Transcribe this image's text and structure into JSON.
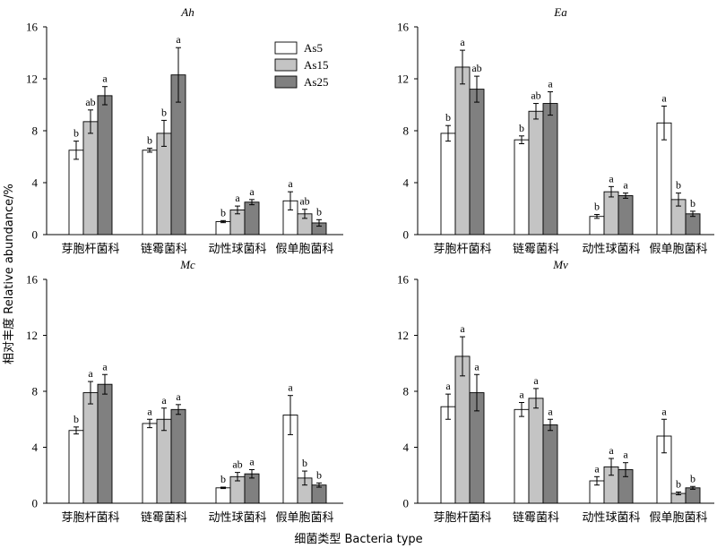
{
  "chart_data": {
    "type": "bar",
    "xlabel": "细菌类型 Bacteria type",
    "ylabel": "相对丰度 Relative abundance/%",
    "legend": {
      "placement": "top-right of first panel",
      "entries": [
        {
          "name": "As5",
          "color": "#ffffff"
        },
        {
          "name": "As15",
          "color": "#c4c4c4"
        },
        {
          "name": "As25",
          "color": "#808080"
        }
      ]
    },
    "series_names": [
      "As5",
      "As15",
      "As25"
    ],
    "series_colors": [
      "#ffffff",
      "#c4c4c4",
      "#808080"
    ],
    "categories": [
      "芽胞杆菌科",
      "链霉菌科",
      "动性球菌科",
      "假单胞菌科"
    ],
    "ylim": [
      0,
      16
    ],
    "yticks": [
      0,
      4,
      8,
      12,
      16
    ],
    "yticks_bottom": [
      0,
      4,
      8,
      12,
      16
    ],
    "panels": [
      {
        "title": "Ah",
        "values": [
          [
            6.5,
            8.7,
            10.7
          ],
          [
            6.5,
            7.8,
            12.3
          ],
          [
            1.0,
            1.9,
            2.5
          ],
          [
            2.6,
            1.6,
            0.9
          ]
        ],
        "errors": [
          [
            0.7,
            0.9,
            0.7
          ],
          [
            0.15,
            1.0,
            2.1
          ],
          [
            0.08,
            0.3,
            0.2
          ],
          [
            0.7,
            0.35,
            0.25
          ]
        ],
        "letters": [
          [
            "b",
            "ab",
            "a"
          ],
          [
            "b",
            "b",
            "a"
          ],
          [
            "b",
            "a",
            "a"
          ],
          [
            "a",
            "ab",
            "b"
          ]
        ]
      },
      {
        "title": "Ea",
        "values": [
          [
            7.8,
            12.9,
            11.2
          ],
          [
            7.3,
            9.5,
            10.1
          ],
          [
            1.4,
            3.3,
            3.0
          ],
          [
            8.6,
            2.7,
            1.6
          ]
        ],
        "errors": [
          [
            0.6,
            1.3,
            1.0
          ],
          [
            0.3,
            0.6,
            0.9
          ],
          [
            0.15,
            0.4,
            0.2
          ],
          [
            1.3,
            0.5,
            0.2
          ]
        ],
        "letters": [
          [
            "b",
            "a",
            "ab"
          ],
          [
            "b",
            "ab",
            "a"
          ],
          [
            "b",
            "a",
            "a"
          ],
          [
            "a",
            "b",
            "b"
          ]
        ]
      },
      {
        "title": "Mc",
        "values": [
          [
            5.2,
            7.9,
            8.5
          ],
          [
            5.7,
            6.0,
            6.7
          ],
          [
            1.1,
            1.9,
            2.1
          ],
          [
            6.3,
            1.8,
            1.3
          ]
        ],
        "errors": [
          [
            0.25,
            0.8,
            0.7
          ],
          [
            0.3,
            0.8,
            0.35
          ],
          [
            0.05,
            0.3,
            0.3
          ],
          [
            1.4,
            0.5,
            0.15
          ]
        ],
        "letters": [
          [
            "b",
            "a",
            "a"
          ],
          [
            "a",
            "a",
            "a"
          ],
          [
            "b",
            "ab",
            "a"
          ],
          [
            "a",
            "b",
            "b"
          ]
        ]
      },
      {
        "title": "Mv",
        "values": [
          [
            6.9,
            10.5,
            7.9
          ],
          [
            6.7,
            7.5,
            5.6
          ],
          [
            1.6,
            2.6,
            2.4
          ],
          [
            4.8,
            0.7,
            1.1
          ]
        ],
        "errors": [
          [
            0.9,
            1.4,
            1.3
          ],
          [
            0.5,
            0.7,
            0.4
          ],
          [
            0.3,
            0.6,
            0.5
          ],
          [
            1.2,
            0.1,
            0.1
          ]
        ],
        "letters": [
          [
            "a",
            "a",
            "a"
          ],
          [
            "a",
            "a",
            "a"
          ],
          [
            "a",
            "a",
            "a"
          ],
          [
            "a",
            "b",
            "b"
          ]
        ]
      }
    ]
  }
}
